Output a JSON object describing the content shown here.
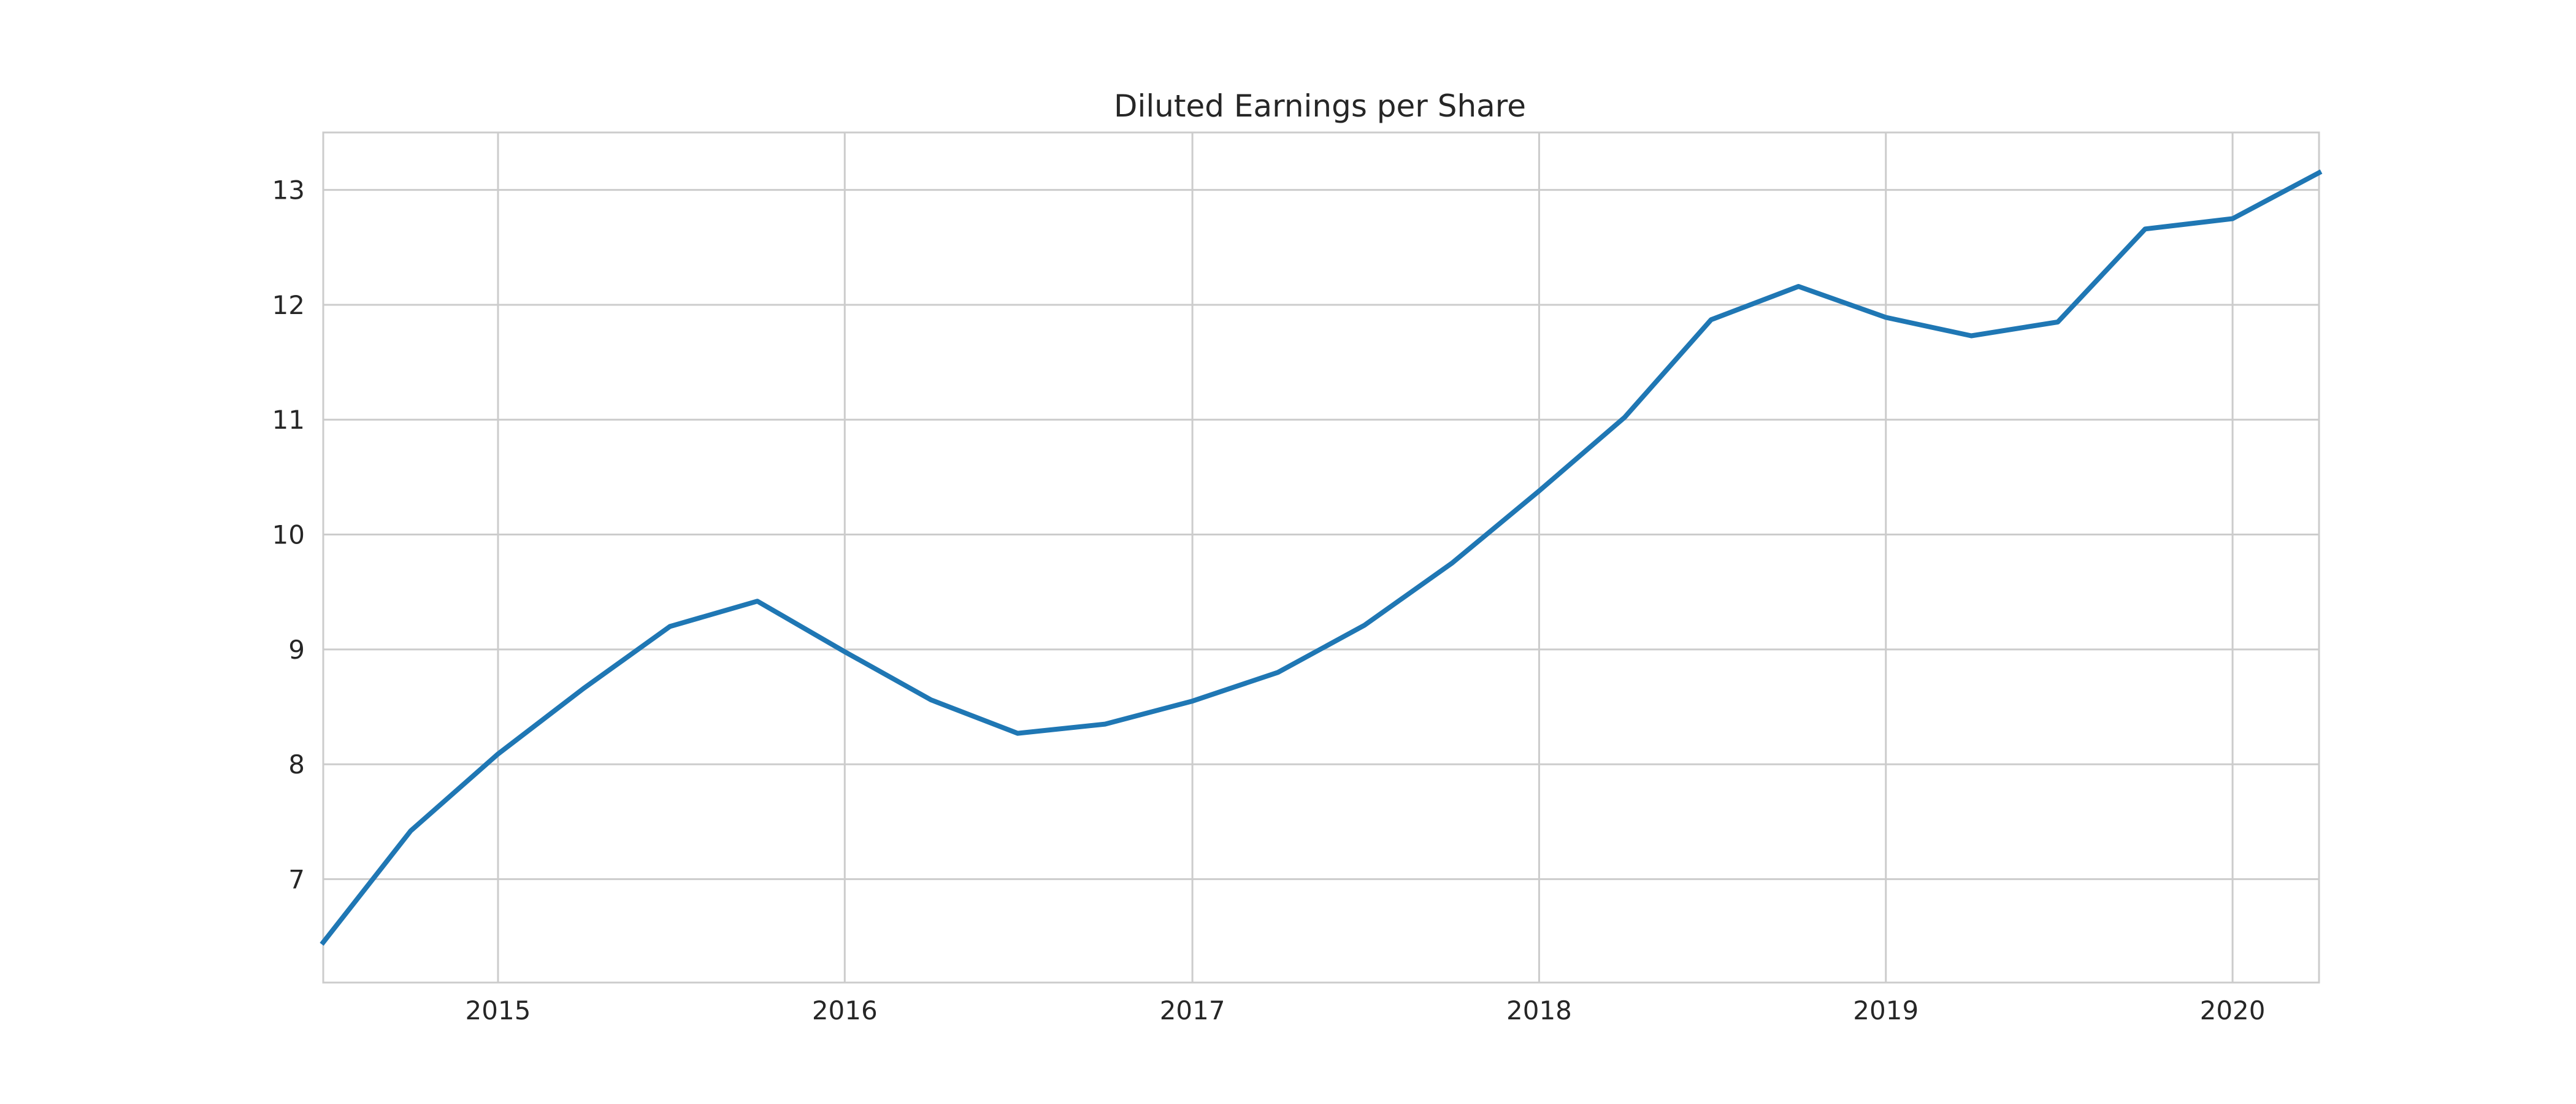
{
  "chart_data": {
    "type": "line",
    "title": "Diluted Earnings per Share",
    "xlabel": "",
    "ylabel": "",
    "x_axis_type": "date",
    "xlim": [
      "2014-07-01",
      "2020-04-01"
    ],
    "ylim": [
      6.1,
      13.5
    ],
    "x_ticks": [
      "2015-01-01",
      "2016-01-01",
      "2017-01-01",
      "2018-01-01",
      "2019-01-01",
      "2020-01-01"
    ],
    "x_tick_labels": [
      "2015",
      "2016",
      "2017",
      "2018",
      "2019",
      "2020"
    ],
    "y_ticks": [
      7,
      8,
      9,
      10,
      11,
      12,
      13
    ],
    "y_tick_labels": [
      "7",
      "8",
      "9",
      "10",
      "11",
      "12",
      "13"
    ],
    "grid": true,
    "legend": "none",
    "series": [
      {
        "color": "#1f77b4",
        "x": [
          "2014-07-01",
          "2014-10-01",
          "2015-01-01",
          "2015-04-01",
          "2015-07-01",
          "2015-10-01",
          "2016-01-01",
          "2016-04-01",
          "2016-07-01",
          "2016-10-01",
          "2017-01-01",
          "2017-04-01",
          "2017-07-01",
          "2017-10-01",
          "2018-01-01",
          "2018-04-01",
          "2018-07-01",
          "2018-10-01",
          "2019-01-01",
          "2019-04-01",
          "2019-07-01",
          "2019-10-01",
          "2020-01-01",
          "2020-04-01"
        ],
        "y": [
          6.45,
          7.42,
          8.09,
          8.66,
          9.2,
          9.42,
          8.98,
          8.56,
          8.27,
          8.35,
          8.55,
          8.8,
          9.21,
          9.75,
          10.38,
          11.02,
          11.87,
          12.16,
          11.89,
          11.73,
          11.85,
          12.66,
          12.75,
          13.15
        ]
      }
    ]
  }
}
